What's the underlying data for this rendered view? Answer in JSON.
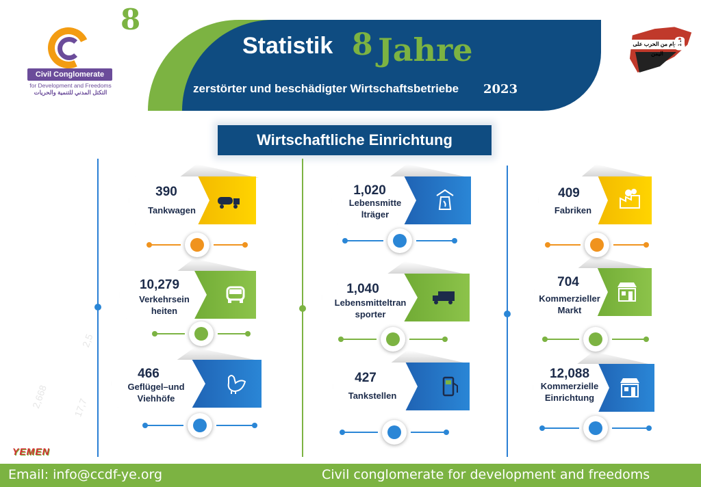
{
  "header": {
    "top_number": "8",
    "title_word": "Statistik",
    "title_number": "8",
    "title_unit": "Jahre",
    "subtitle": "zerstörter und beschädigter Wirtschaftsbetriebe",
    "year": "2023"
  },
  "logo": {
    "badge": "Civil Conglomerate",
    "tagline": "for Development and Freedoms",
    "arabic": "التكتل المدني للتنمية والحريات"
  },
  "right_logo": {
    "text": "أعوام من الحرب على اليمن",
    "number": "8"
  },
  "section": {
    "title": "Wirtschaftliche Einrichtung"
  },
  "columns": [
    {
      "cards": [
        {
          "value": "390",
          "label": "Tankwagen",
          "color": "yellow",
          "icon": "tanker-truck-icon"
        },
        {
          "value": "10,279",
          "label": "Verkehrsein heiten",
          "color": "green",
          "icon": "car-icon"
        },
        {
          "value": "466",
          "label": "Geflügel–und Viehhöfe",
          "color": "blue",
          "icon": "chicken-icon"
        }
      ]
    },
    {
      "cards": [
        {
          "value": "1,020",
          "label": "Lebensmitte lträger",
          "color": "blue",
          "icon": "food-bag-icon"
        },
        {
          "value": "1,040",
          "label": "Lebensmitteltran sporter",
          "color": "green",
          "icon": "truck-icon"
        },
        {
          "value": "427",
          "label": "Tankstellen",
          "color": "blue",
          "icon": "fuel-pump-icon"
        }
      ]
    },
    {
      "cards": [
        {
          "value": "409",
          "label": "Fabriken",
          "color": "yellow",
          "icon": "factory-icon"
        },
        {
          "value": "704",
          "label": "Kommerzieller Markt",
          "color": "green",
          "icon": "shop-icon"
        },
        {
          "value": "12,088",
          "label": "Kommerzielle Einrichtung",
          "color": "blue",
          "icon": "store-icon"
        }
      ]
    }
  ],
  "colors": {
    "yellow": "#f7c200",
    "blue": "#2a86d6",
    "green": "#7cb342",
    "orange": "#f0931e",
    "navy": "#0f4c81"
  },
  "footer": {
    "email": "Email: info@ccdf-ye.org",
    "org": "Civil conglomerate for development and freedoms"
  },
  "yemen_mark": "YEMEN"
}
